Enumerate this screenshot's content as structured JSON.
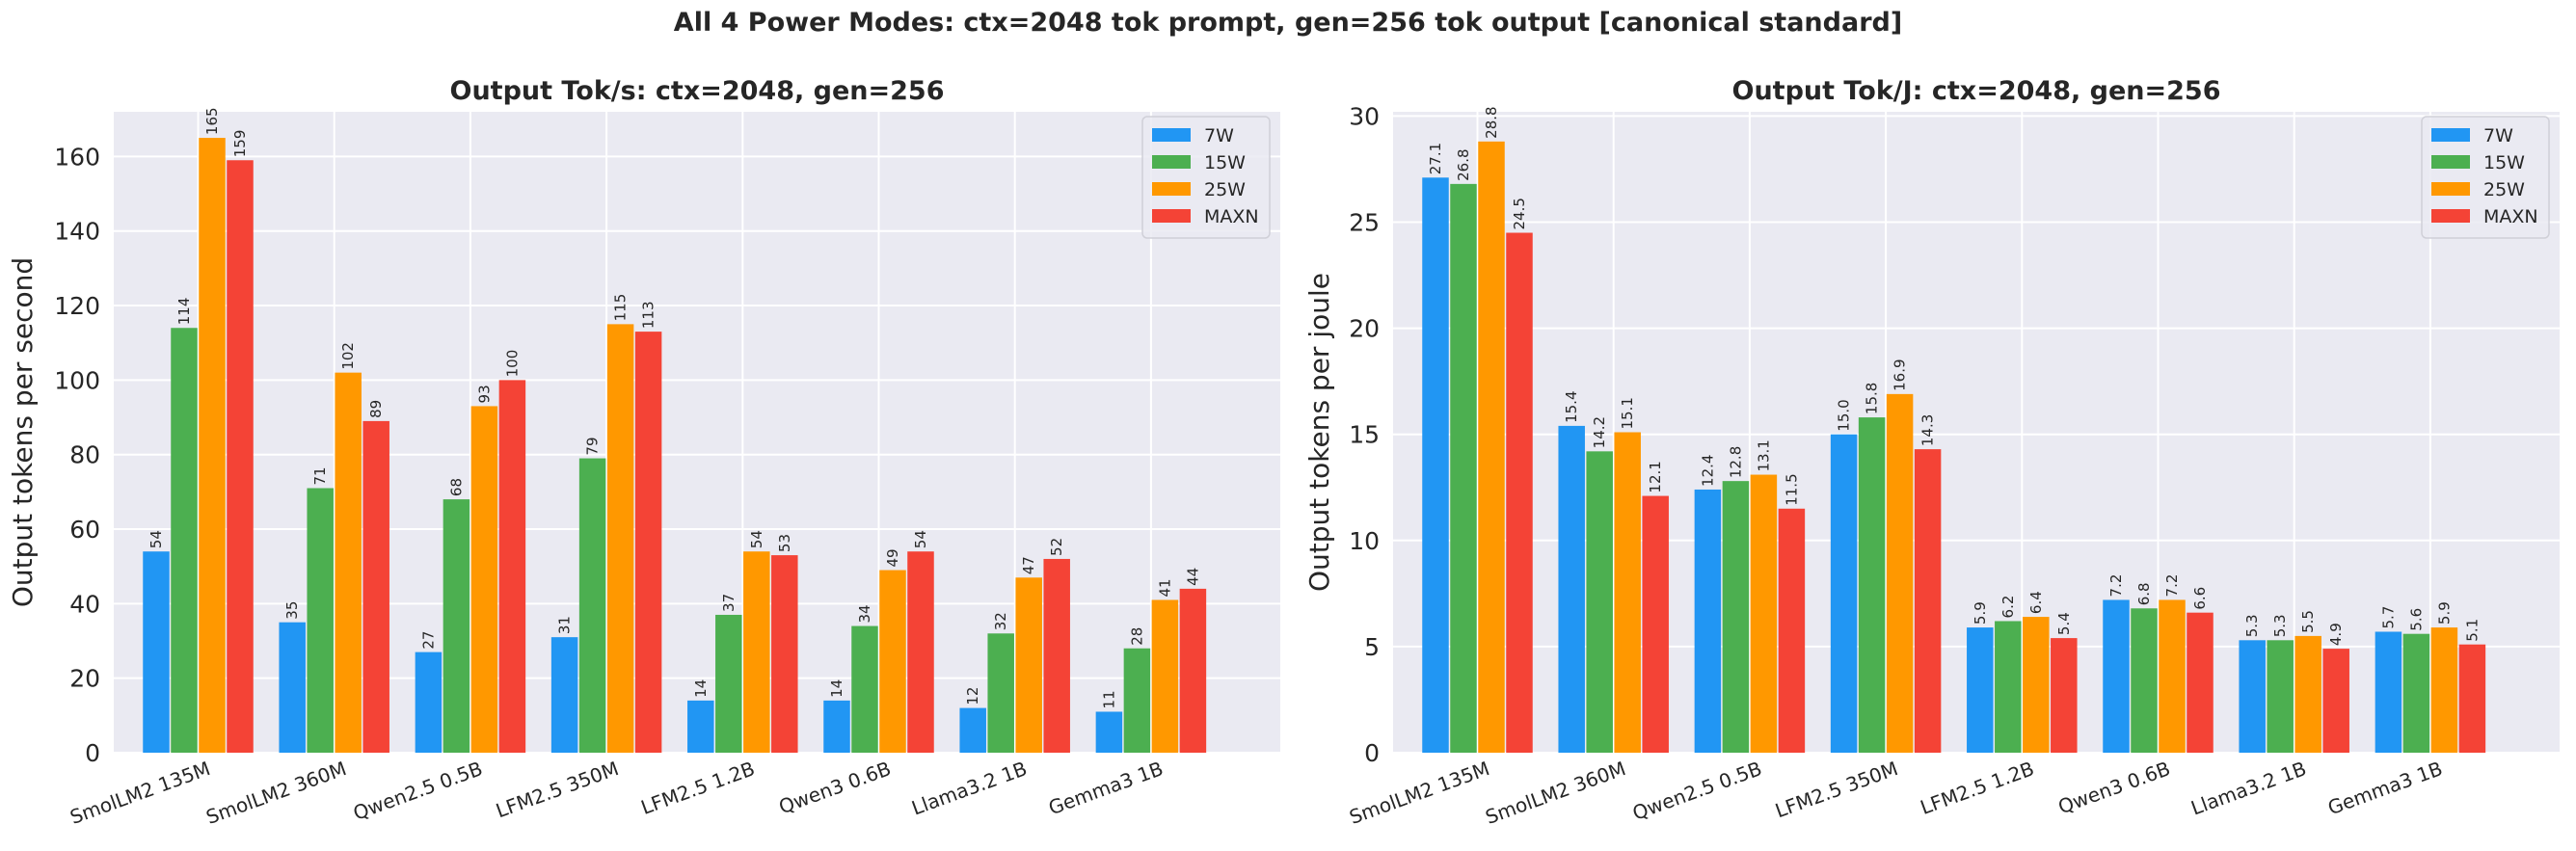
{
  "figure": {
    "suptitle": "All 4 Power Modes: ctx=2048 tok prompt, gen=256 tok output  [canonical standard]"
  },
  "colors": {
    "7W": "#2196F3",
    "15W": "#4CAF50",
    "25W": "#FF9800",
    "MAXN": "#F44336",
    "panel_bg": "#EAEAF2",
    "grid": "#FFFFFF"
  },
  "chart_data": [
    {
      "type": "bar",
      "title": "Output Tok/s: ctx=2048, gen=256",
      "xlabel": "",
      "ylabel": "Output tokens per second",
      "ylim": [
        0,
        172
      ],
      "yticks": [
        0,
        20,
        40,
        60,
        80,
        100,
        120,
        140,
        160
      ],
      "grid": true,
      "legend_position": "top-right",
      "categories": [
        "SmolLM2 135M",
        "SmolLM2 360M",
        "Qwen2.5 0.5B",
        "LFM2.5 350M",
        "LFM2.5 1.2B",
        "Qwen3 0.6B",
        "Llama3.2 1B",
        "Gemma3 1B"
      ],
      "series": [
        {
          "name": "7W",
          "values": [
            54,
            35,
            27,
            31,
            14,
            14,
            12,
            11
          ],
          "labels": [
            "54",
            "35",
            "27",
            "31",
            "14",
            "14",
            "12",
            "11"
          ]
        },
        {
          "name": "15W",
          "values": [
            114,
            71,
            68,
            79,
            37,
            34,
            32,
            28
          ],
          "labels": [
            "114",
            "71",
            "68",
            "79",
            "37",
            "34",
            "32",
            "28"
          ]
        },
        {
          "name": "25W",
          "values": [
            165,
            102,
            93,
            115,
            54,
            49,
            47,
            41
          ],
          "labels": [
            "165",
            "102",
            "93",
            "115",
            "54",
            "49",
            "47",
            "41"
          ]
        },
        {
          "name": "MAXN",
          "values": [
            159,
            89,
            100,
            113,
            53,
            54,
            52,
            44
          ],
          "labels": [
            "159",
            "89",
            "100",
            "113",
            "53",
            "54",
            "52",
            "44"
          ]
        }
      ]
    },
    {
      "type": "bar",
      "title": "Output Tok/J: ctx=2048, gen=256",
      "xlabel": "",
      "ylabel": "Output tokens per joule",
      "ylim": [
        0,
        30.2
      ],
      "yticks": [
        0,
        5,
        10,
        15,
        20,
        25,
        30
      ],
      "grid": true,
      "legend_position": "top-right",
      "categories": [
        "SmolLM2 135M",
        "SmolLM2 360M",
        "Qwen2.5 0.5B",
        "LFM2.5 350M",
        "LFM2.5 1.2B",
        "Qwen3 0.6B",
        "Llama3.2 1B",
        "Gemma3 1B"
      ],
      "series": [
        {
          "name": "7W",
          "values": [
            27.1,
            15.4,
            12.4,
            15.0,
            5.9,
            7.2,
            5.3,
            5.7
          ],
          "labels": [
            "27.1",
            "15.4",
            "12.4",
            "15.0",
            "5.9",
            "7.2",
            "5.3",
            "5.7"
          ]
        },
        {
          "name": "15W",
          "values": [
            26.8,
            14.2,
            12.8,
            15.8,
            6.2,
            6.8,
            5.3,
            5.6
          ],
          "labels": [
            "26.8",
            "14.2",
            "12.8",
            "15.8",
            "6.2",
            "6.8",
            "5.3",
            "5.6"
          ]
        },
        {
          "name": "25W",
          "values": [
            28.8,
            15.1,
            13.1,
            16.9,
            6.4,
            7.2,
            5.5,
            5.9
          ],
          "labels": [
            "28.8",
            "15.1",
            "13.1",
            "16.9",
            "6.4",
            "7.2",
            "5.5",
            "5.9"
          ]
        },
        {
          "name": "MAXN",
          "values": [
            24.5,
            12.1,
            11.5,
            14.3,
            5.4,
            6.6,
            4.9,
            5.1
          ],
          "labels": [
            "24.5",
            "12.1",
            "11.5",
            "14.3",
            "5.4",
            "6.6",
            "4.9",
            "5.1"
          ]
        }
      ]
    }
  ]
}
